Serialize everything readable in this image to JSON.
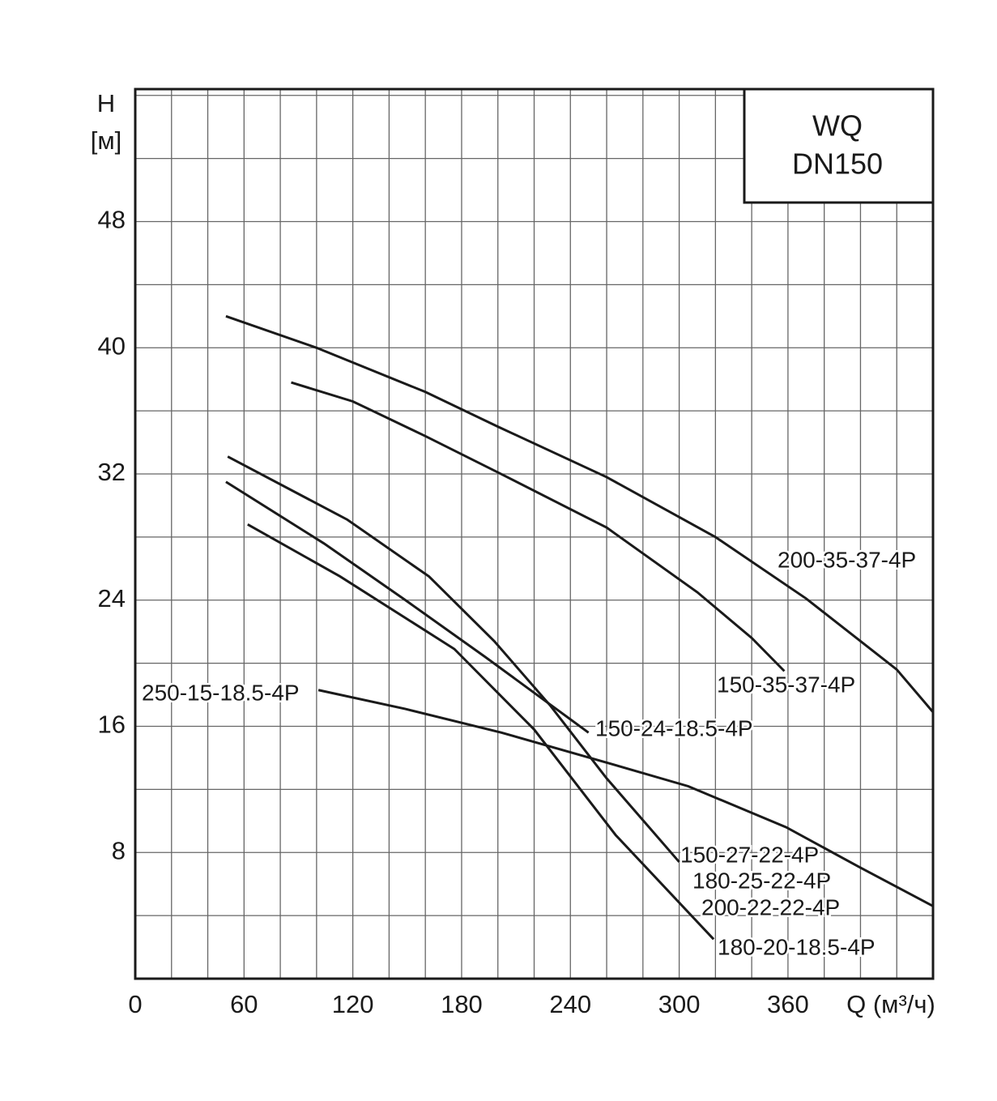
{
  "chart_data": {
    "type": "line",
    "title": "WQ",
    "subtitle": "DN150",
    "y_label": "H",
    "y_unit": "[м]",
    "x_label": "Q (м³/ч)",
    "xlim": [
      0,
      440
    ],
    "ylim": [
      0,
      56.4
    ],
    "xticks": [
      0,
      60,
      120,
      180,
      240,
      300,
      360
    ],
    "yticks": [
      8,
      16,
      24,
      32,
      40,
      48
    ],
    "grid": true,
    "minor_grid": {
      "x": 3,
      "y": 2
    },
    "series": [
      {
        "name": "200-35-37-4P",
        "color": "#1a1a1a",
        "x": [
          50,
          100,
          160,
          200,
          260,
          320,
          370,
          420,
          440
        ],
        "values": [
          42,
          40,
          37.2,
          35,
          31.8,
          28,
          24.1,
          19.6,
          16.9
        ]
      },
      {
        "name": "150-35-37-4P",
        "color": "#1a1a1a",
        "x": [
          86,
          120,
          160,
          200,
          260,
          310,
          340,
          358
        ],
        "values": [
          37.8,
          36.6,
          34.4,
          32.1,
          28.6,
          24.5,
          21.6,
          19.5
        ]
      },
      {
        "name": "150-27-22-4P",
        "color": "#1a1a1a",
        "x": [
          51,
          117,
          162,
          198,
          229,
          260,
          300
        ],
        "values": [
          33.1,
          29.1,
          25.5,
          21.4,
          17.3,
          12.7,
          7.4
        ]
      },
      {
        "name": "150-24-18.5-4P",
        "color": "#1a1a1a",
        "x": [
          50,
          104,
          149,
          193,
          250
        ],
        "values": [
          31.5,
          27.6,
          24,
          20.4,
          15.6
        ]
      },
      {
        "name": "180-20-18.5-4P",
        "color": "#1a1a1a",
        "x": [
          62,
          113,
          176,
          220,
          265,
          319
        ],
        "values": [
          28.8,
          25.5,
          20.9,
          15.8,
          9.1,
          2.5
        ]
      },
      {
        "name": "250-15-18.5-4P",
        "color": "#1a1a1a",
        "x": [
          101,
          149,
          202,
          260,
          305,
          359,
          399,
          440
        ],
        "values": [
          18.3,
          17.1,
          15.6,
          13.7,
          12.2,
          9.6,
          7.1,
          4.6
        ]
      }
    ],
    "annotations": [
      "180-25-22-4P",
      "200-22-22-4P"
    ]
  }
}
